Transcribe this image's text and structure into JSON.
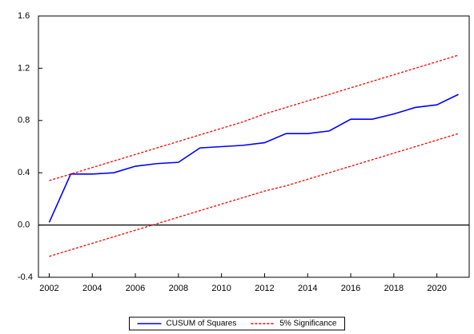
{
  "chart_data": {
    "type": "line",
    "x": [
      2002,
      2003,
      2004,
      2005,
      2006,
      2007,
      2008,
      2009,
      2010,
      2011,
      2012,
      2013,
      2014,
      2015,
      2016,
      2017,
      2018,
      2019,
      2020,
      2021
    ],
    "series": [
      {
        "name": "CUSUM of Squares",
        "color": "#0000ff",
        "dashed": false,
        "values": [
          0.02,
          0.39,
          0.39,
          0.4,
          0.45,
          0.47,
          0.48,
          0.59,
          0.6,
          0.61,
          0.63,
          0.7,
          0.7,
          0.72,
          0.81,
          0.81,
          0.85,
          0.9,
          0.92,
          1.0
        ]
      },
      {
        "name": "5% Significance",
        "color": "#ff0000",
        "dashed": true,
        "values": [
          0.34,
          0.39,
          0.44,
          0.49,
          0.54,
          0.59,
          0.64,
          0.69,
          0.74,
          0.79,
          0.85,
          0.9,
          0.95,
          1.0,
          1.05,
          1.1,
          1.15,
          1.2,
          1.25,
          1.3
        ],
        "lower": [
          -0.24,
          -0.19,
          -0.14,
          -0.09,
          -0.04,
          0.01,
          0.06,
          0.11,
          0.16,
          0.21,
          0.26,
          0.3,
          0.35,
          0.4,
          0.45,
          0.5,
          0.55,
          0.6,
          0.65,
          0.7
        ]
      }
    ],
    "xlim": [
      2001.5,
      2021.5
    ],
    "xticks": [
      2002,
      2004,
      2006,
      2008,
      2010,
      2012,
      2014,
      2016,
      2018,
      2020
    ],
    "ylim": [
      -0.4,
      1.6
    ],
    "yticks": [
      {
        "value": -0.4,
        "label": "-0.4"
      },
      {
        "value": 0,
        "label": "0.0"
      },
      {
        "value": 0.4,
        "label": "0.4"
      },
      {
        "value": 0.8,
        "label": "0.8"
      },
      {
        "value": 1.2,
        "label": "1.2"
      },
      {
        "value": 1.6,
        "label": "1.6"
      }
    ],
    "zero_line": true,
    "legend": "bottom"
  }
}
